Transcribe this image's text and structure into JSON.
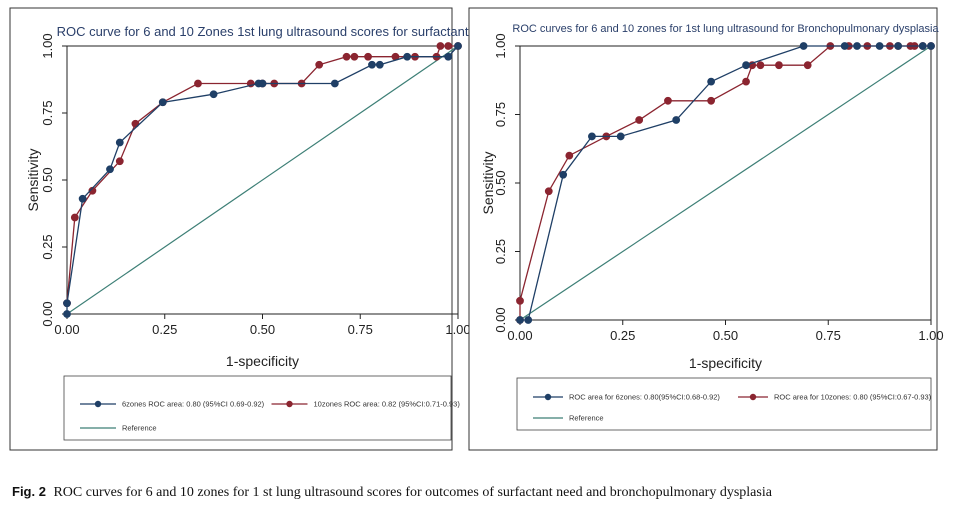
{
  "figure": {
    "caption_label": "Fig. 2",
    "caption_text": "ROC curves for 6 and 10 zones for 1 st lung ultrasound scores for outcomes of surfactant need and bronchopulmonary dysplasia"
  },
  "colors": {
    "series_a": "#1f3f66",
    "series_b": "#8b2530",
    "reference": "#3d7f76",
    "frame": "#333333"
  },
  "chart_data": [
    {
      "type": "line",
      "title": "ROC curve for 6 and 10 Zones 1st lung ultrasound scores for surfactant",
      "xlabel": "1-specificity",
      "ylabel": "Sensitivity",
      "xlim": [
        0,
        1
      ],
      "ylim": [
        0,
        1
      ],
      "xticks": [
        "0.00",
        "0.25",
        "0.50",
        "0.75",
        "1.00"
      ],
      "yticks": [
        "0.00",
        "0.25",
        "0.50",
        "0.75",
        "1.00"
      ],
      "grid": false,
      "legend_position": "bottom",
      "series": [
        {
          "name": "6zones ROC area: 0.80 (95%CI 0.69-0.92)",
          "color_key": "series_a",
          "points": [
            [
              0,
              0
            ],
            [
              0,
              0.04
            ],
            [
              0.04,
              0.43
            ],
            [
              0.11,
              0.54
            ],
            [
              0.135,
              0.64
            ],
            [
              0.245,
              0.79
            ],
            [
              0.375,
              0.82
            ],
            [
              0.49,
              0.86
            ],
            [
              0.5,
              0.86
            ],
            [
              0.685,
              0.86
            ],
            [
              0.78,
              0.93
            ],
            [
              0.8,
              0.93
            ],
            [
              0.87,
              0.96
            ],
            [
              0.975,
              0.96
            ],
            [
              1,
              1
            ]
          ]
        },
        {
          "name": "10zones ROC area: 0.82 (95%CI:0.71-0.93)",
          "color_key": "series_b",
          "points": [
            [
              0,
              0.04
            ],
            [
              0.02,
              0.36
            ],
            [
              0.065,
              0.46
            ],
            [
              0.135,
              0.57
            ],
            [
              0.175,
              0.71
            ],
            [
              0.245,
              0.79
            ],
            [
              0.335,
              0.86
            ],
            [
              0.47,
              0.86
            ],
            [
              0.5,
              0.86
            ],
            [
              0.53,
              0.86
            ],
            [
              0.6,
              0.86
            ],
            [
              0.645,
              0.93
            ],
            [
              0.715,
              0.96
            ],
            [
              0.735,
              0.96
            ],
            [
              0.77,
              0.96
            ],
            [
              0.84,
              0.96
            ],
            [
              0.89,
              0.96
            ],
            [
              0.945,
              0.96
            ],
            [
              0.955,
              1
            ],
            [
              0.975,
              1
            ],
            [
              1,
              1
            ]
          ]
        }
      ],
      "reference_label": "Reference"
    },
    {
      "type": "line",
      "title": "ROC curves for 6 and 10 zones for 1st lung ultrasound for Bronchopulmonary dysplasia",
      "xlabel": "1-specificity",
      "ylabel": "Sensitivity",
      "xlim": [
        0,
        1
      ],
      "ylim": [
        0,
        1
      ],
      "xticks": [
        "0.00",
        "0.25",
        "0.50",
        "0.75",
        "1.00"
      ],
      "yticks": [
        "0.00",
        "0.25",
        "0.50",
        "0.75",
        "1.00"
      ],
      "grid": false,
      "legend_position": "bottom",
      "series": [
        {
          "name": "ROC area for 6zones: 0.80(95%CI:0.68-0.92)",
          "color_key": "series_a",
          "points": [
            [
              0,
              0
            ],
            [
              0.02,
              0
            ],
            [
              0.105,
              0.53
            ],
            [
              0.175,
              0.67
            ],
            [
              0.245,
              0.67
            ],
            [
              0.38,
              0.73
            ],
            [
              0.465,
              0.87
            ],
            [
              0.55,
              0.93
            ],
            [
              0.69,
              1
            ],
            [
              0.79,
              1
            ],
            [
              0.82,
              1
            ],
            [
              0.875,
              1
            ],
            [
              0.92,
              1
            ],
            [
              0.98,
              1
            ],
            [
              1,
              1
            ]
          ]
        },
        {
          "name": "ROC area for 10zones: 0.80 (95%CI:0.67-0.93)",
          "color_key": "series_b",
          "points": [
            [
              0,
              0
            ],
            [
              0,
              0.07
            ],
            [
              0.07,
              0.47
            ],
            [
              0.12,
              0.6
            ],
            [
              0.21,
              0.67
            ],
            [
              0.29,
              0.73
            ],
            [
              0.36,
              0.8
            ],
            [
              0.465,
              0.8
            ],
            [
              0.55,
              0.87
            ],
            [
              0.565,
              0.93
            ],
            [
              0.585,
              0.93
            ],
            [
              0.63,
              0.93
            ],
            [
              0.7,
              0.93
            ],
            [
              0.755,
              1
            ],
            [
              0.8,
              1
            ],
            [
              0.845,
              1
            ],
            [
              0.9,
              1
            ],
            [
              0.92,
              1
            ],
            [
              0.95,
              1
            ],
            [
              0.96,
              1
            ],
            [
              0.98,
              1
            ],
            [
              1,
              1
            ]
          ]
        }
      ],
      "reference_label": "Reference"
    }
  ]
}
